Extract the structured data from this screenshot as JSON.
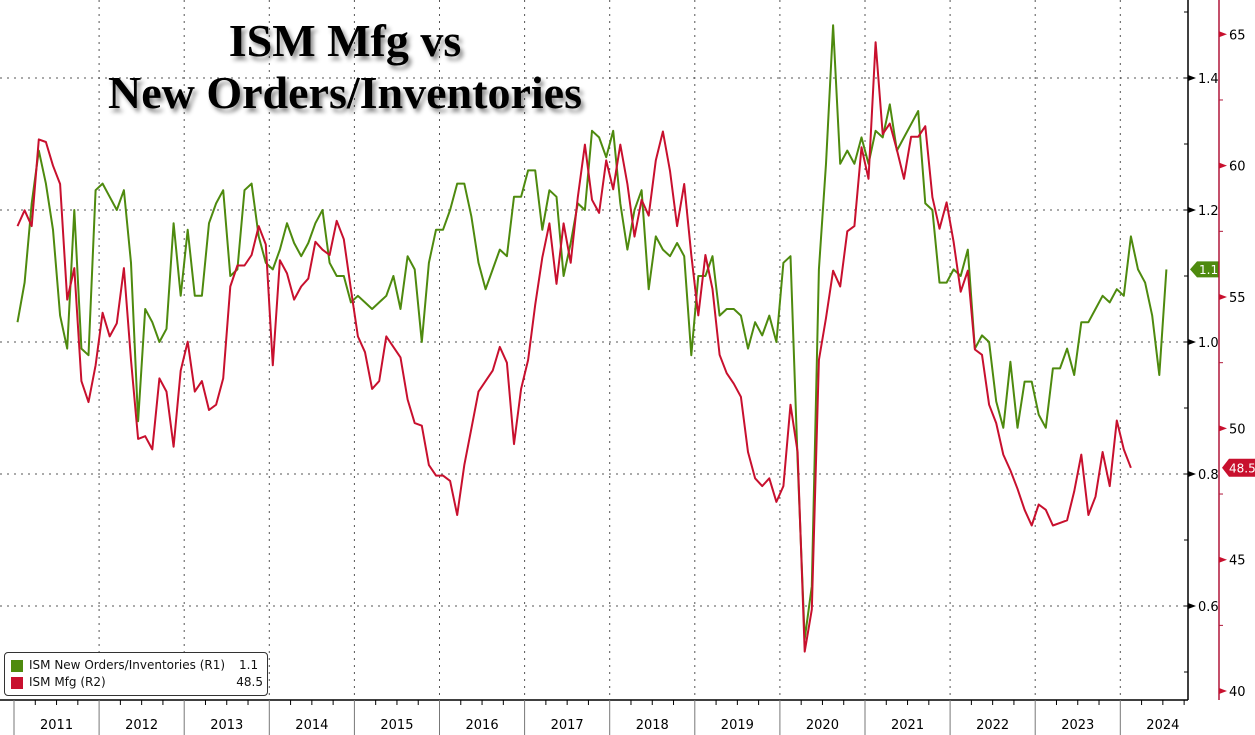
{
  "chart_data": {
    "type": "line",
    "title": "ISM Mfg vs New Orders/Inventories",
    "title_lines": [
      "ISM Mfg vs",
      "New Orders/Inventories"
    ],
    "xlabel": "",
    "x_start": "2011-01",
    "x_frequency": "monthly",
    "year_labels": [
      "2011",
      "2012",
      "2013",
      "2014",
      "2015",
      "2016",
      "2017",
      "2018",
      "2019",
      "2020",
      "2021",
      "2022",
      "2023",
      "2024"
    ],
    "axes": {
      "r1": {
        "ticks": [
          0.6,
          0.8,
          1.0,
          1.2,
          1.4
        ],
        "tick_labels": [
          "0.6",
          "0.8",
          "1.0",
          "1.2",
          "1.4"
        ],
        "ylim": [
          0.5,
          1.52
        ]
      },
      "r2": {
        "ticks": [
          40,
          45,
          50,
          55,
          60,
          65
        ],
        "tick_labels": [
          "40",
          "45",
          "50",
          "55",
          "60",
          "65"
        ],
        "ylim": [
          39.9,
          66.3
        ]
      }
    },
    "grid": true,
    "legend_position": "bottom-left",
    "series": [
      {
        "name": "ISM New Orders/Inventories (R1)",
        "axis": "r1",
        "color": "#4e8a0e",
        "last_value_label": "1.1",
        "values": [
          1.03,
          1.09,
          1.21,
          1.29,
          1.24,
          1.17,
          1.04,
          0.99,
          1.2,
          0.99,
          0.98,
          1.23,
          1.24,
          1.22,
          1.2,
          1.23,
          1.12,
          0.88,
          1.05,
          1.03,
          1.0,
          1.02,
          1.18,
          1.07,
          1.17,
          1.07,
          1.07,
          1.18,
          1.21,
          1.23,
          1.1,
          1.11,
          1.23,
          1.24,
          1.16,
          1.12,
          1.11,
          1.14,
          1.18,
          1.15,
          1.13,
          1.15,
          1.18,
          1.2,
          1.12,
          1.1,
          1.1,
          1.06,
          1.07,
          1.06,
          1.05,
          1.06,
          1.07,
          1.1,
          1.05,
          1.13,
          1.11,
          1.0,
          1.12,
          1.17,
          1.17,
          1.2,
          1.24,
          1.24,
          1.19,
          1.12,
          1.08,
          1.11,
          1.14,
          1.13,
          1.22,
          1.22,
          1.26,
          1.26,
          1.17,
          1.23,
          1.22,
          1.1,
          1.15,
          1.21,
          1.2,
          1.32,
          1.31,
          1.28,
          1.32,
          1.21,
          1.14,
          1.2,
          1.23,
          1.08,
          1.16,
          1.14,
          1.13,
          1.15,
          1.13,
          0.98,
          1.1,
          1.1,
          1.13,
          1.04,
          1.05,
          1.05,
          1.04,
          0.99,
          1.03,
          1.01,
          1.04,
          1.0,
          1.12,
          1.13,
          0.82,
          0.55,
          0.63,
          1.11,
          1.27,
          1.48,
          1.27,
          1.29,
          1.27,
          1.31,
          1.27,
          1.32,
          1.31,
          1.36,
          1.29,
          1.31,
          1.33,
          1.35,
          1.21,
          1.2,
          1.09,
          1.09,
          1.11,
          1.1,
          1.14,
          0.99,
          1.01,
          1.0,
          0.91,
          0.87,
          0.97,
          0.87,
          0.94,
          0.94,
          0.89,
          0.87,
          0.96,
          0.96,
          0.99,
          0.95,
          1.03,
          1.03,
          1.05,
          1.07,
          1.06,
          1.08,
          1.07,
          1.16,
          1.11,
          1.09,
          1.04,
          0.95,
          1.11
        ]
      },
      {
        "name": "ISM Mfg (R2)",
        "axis": "r2",
        "color": "#c8102e",
        "last_value_label": "48.5",
        "values": [
          57.7,
          58.3,
          57.7,
          61.0,
          60.9,
          60.0,
          59.3,
          54.9,
          56.1,
          51.8,
          51.0,
          52.4,
          54.4,
          53.5,
          54.0,
          56.1,
          52.6,
          49.6,
          49.7,
          49.2,
          51.9,
          51.4,
          49.3,
          52.2,
          53.3,
          51.4,
          51.8,
          50.7,
          50.9,
          51.9,
          55.4,
          56.2,
          56.2,
          56.6,
          57.7,
          57.0,
          52.4,
          56.4,
          55.9,
          54.9,
          55.4,
          55.7,
          57.1,
          56.8,
          56.6,
          57.9,
          57.2,
          55.3,
          53.5,
          52.9,
          51.5,
          51.8,
          53.5,
          53.1,
          52.7,
          51.1,
          50.2,
          50.1,
          48.6,
          48.2,
          48.2,
          48.0,
          46.7,
          48.6,
          50.0,
          51.4,
          51.8,
          52.2,
          53.1,
          52.5,
          49.4,
          51.5,
          52.6,
          54.7,
          56.5,
          57.8,
          55.5,
          57.8,
          56.3,
          58.8,
          60.8,
          58.7,
          58.2,
          60.2,
          59.1,
          60.8,
          59.3,
          57.3,
          58.7,
          58.1,
          60.2,
          61.3,
          59.8,
          57.7,
          59.3,
          56.6,
          54.3,
          56.6,
          55.3,
          52.8,
          52.1,
          51.7,
          51.2,
          49.1,
          48.1,
          47.8,
          48.1,
          47.2,
          47.8,
          50.9,
          49.1,
          41.5,
          43.1,
          52.6,
          54.2,
          56.0,
          55.4,
          57.5,
          57.7,
          60.7,
          59.5,
          64.7,
          61.2,
          61.6,
          60.6,
          59.5,
          61.1,
          61.1,
          61.5,
          58.8,
          57.6,
          58.6,
          57.1,
          55.2,
          56.0,
          53.0,
          52.8,
          50.9,
          50.2,
          49.0,
          48.4,
          47.7,
          46.9,
          46.3,
          47.1,
          46.9,
          46.3,
          46.4,
          46.5,
          47.6,
          49.0,
          46.7,
          47.4,
          49.1,
          47.8,
          50.3,
          49.2,
          48.5
        ]
      }
    ]
  },
  "legend": {
    "items": [
      {
        "label": "ISM New Orders/Inventories (R1)",
        "value": "1.1",
        "color": "#4e8a0e"
      },
      {
        "label": "ISM Mfg (R2)",
        "value": "48.5",
        "color": "#c8102e"
      }
    ]
  }
}
